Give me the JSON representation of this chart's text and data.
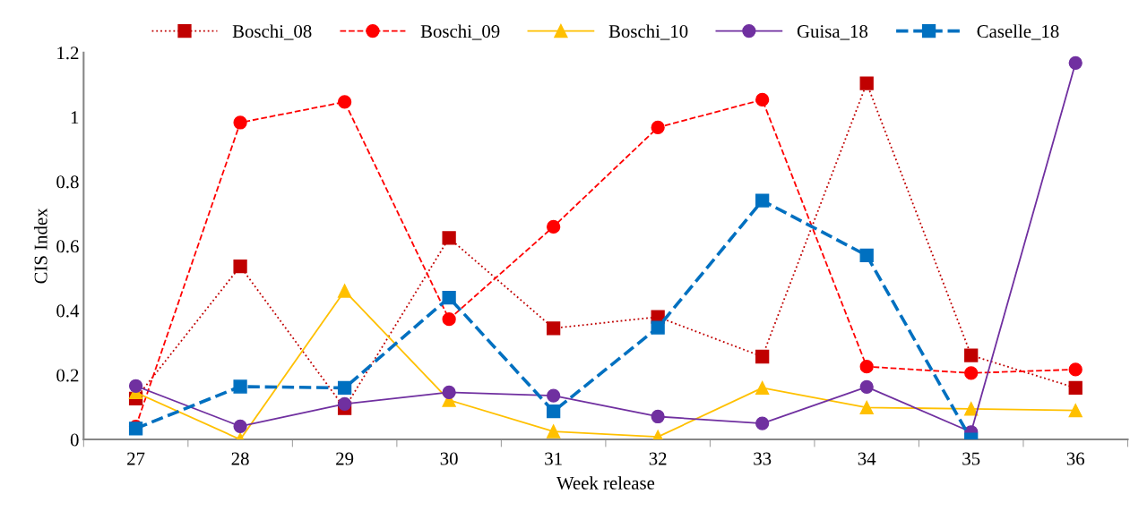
{
  "chart_data": {
    "type": "line",
    "xlabel": "Week release",
    "ylabel": "CIS Index",
    "categories": [
      "27",
      "28",
      "29",
      "30",
      "31",
      "32",
      "33",
      "34",
      "35",
      "36"
    ],
    "series": [
      {
        "name": "Boschi_08",
        "color": "#c00000",
        "marker": "square",
        "line_style": "dotted",
        "values": [
          0.127,
          0.537,
          0.097,
          0.625,
          0.345,
          0.38,
          0.257,
          1.105,
          0.261,
          0.16
        ]
      },
      {
        "name": "Boschi_09",
        "color": "#ff0000",
        "marker": "circle",
        "line_style": "dashed",
        "values": [
          0.04,
          0.983,
          1.047,
          0.373,
          0.66,
          0.968,
          1.054,
          0.226,
          0.206,
          0.217
        ]
      },
      {
        "name": "Boschi_10",
        "color": "#ffc000",
        "marker": "triangle",
        "line_style": "solid",
        "values": [
          0.146,
          0.0,
          0.461,
          0.122,
          0.025,
          0.008,
          0.16,
          0.099,
          0.095,
          0.09
        ]
      },
      {
        "name": "Guisa_18",
        "color": "#7030a0",
        "marker": "circle",
        "line_style": "solid",
        "values": [
          0.166,
          0.041,
          0.11,
          0.146,
          0.136,
          0.071,
          0.05,
          0.163,
          0.023,
          1.168
        ]
      },
      {
        "name": "Caselle_18",
        "color": "#0070c0",
        "marker": "square",
        "line_style": "dashed",
        "values": [
          0.034,
          0.164,
          0.16,
          0.44,
          0.087,
          0.347,
          0.741,
          0.571,
          0.0,
          null
        ]
      }
    ],
    "ylim": [
      0,
      1.2
    ],
    "yticks": [
      0,
      0.2,
      0.4,
      0.6,
      0.8,
      1,
      1.2
    ],
    "grid": false,
    "legend": "top"
  }
}
